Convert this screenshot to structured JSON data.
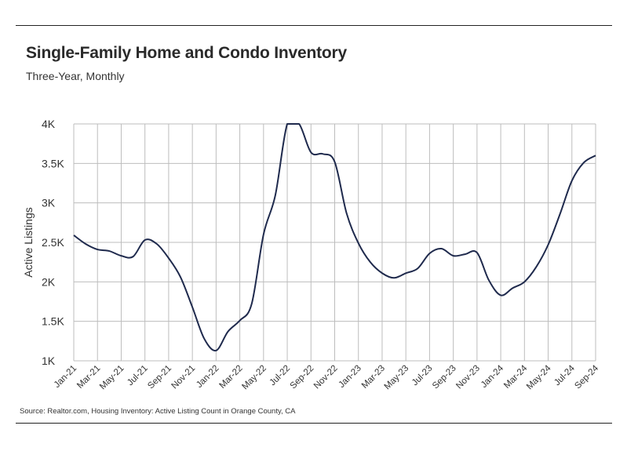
{
  "header": {
    "title": "Single-Family Home and Condo Inventory",
    "subtitle": "Three-Year, Monthly"
  },
  "footer": {
    "source": "Source: Realtor.com, Housing Inventory: Active Listing Count in Orange County, CA"
  },
  "colors": {
    "line": "#1f2a4d",
    "grid": "#bdbdbd",
    "rule": "#222222"
  },
  "chart_data": {
    "type": "line",
    "title": "Single-Family Home and Condo Inventory",
    "subtitle": "Three-Year, Monthly",
    "xlabel": "",
    "ylabel": "Active Listings",
    "ylim": [
      1000,
      4000
    ],
    "yticks": [
      1000,
      1500,
      2000,
      2500,
      3000,
      3500,
      4000
    ],
    "ytick_labels": [
      "1K",
      "1.5K",
      "2K",
      "2.5K",
      "3K",
      "3.5K",
      "4K"
    ],
    "grid": true,
    "legend": "none",
    "x": [
      "Jan-21",
      "Feb-21",
      "Mar-21",
      "Apr-21",
      "May-21",
      "Jun-21",
      "Jul-21",
      "Aug-21",
      "Sep-21",
      "Oct-21",
      "Nov-21",
      "Dec-21",
      "Jan-22",
      "Feb-22",
      "Mar-22",
      "Apr-22",
      "May-22",
      "Jun-22",
      "Jul-22",
      "Aug-22",
      "Sep-22",
      "Oct-22",
      "Nov-22",
      "Dec-22",
      "Jan-23",
      "Feb-23",
      "Mar-23",
      "Apr-23",
      "May-23",
      "Jun-23",
      "Jul-23",
      "Aug-23",
      "Sep-23",
      "Oct-23",
      "Nov-23",
      "Dec-23",
      "Jan-24",
      "Feb-24",
      "Mar-24",
      "Apr-24",
      "May-24",
      "Jun-24",
      "Jul-24",
      "Aug-24",
      "Sep-24"
    ],
    "x_tick_labels": [
      "Jan-21",
      "Mar-21",
      "May-21",
      "Jul-21",
      "Sep-21",
      "Nov-21",
      "Jan-22",
      "Mar-22",
      "May-22",
      "Jul-22",
      "Sep-22",
      "Nov-22",
      "Jan-23",
      "Mar-23",
      "May-23",
      "Jul-23",
      "Sep-23",
      "Nov-23",
      "Jan-24",
      "Mar-24",
      "May-24",
      "Jul-24",
      "Sep-24"
    ],
    "series": [
      {
        "values": [
          2590,
          2480,
          2410,
          2390,
          2330,
          2320,
          2530,
          2480,
          2300,
          2060,
          1680,
          1280,
          1130,
          1370,
          1510,
          1720,
          2600,
          3100,
          4000,
          4000,
          3640,
          3620,
          3520,
          2870,
          2490,
          2250,
          2110,
          2050,
          2110,
          2170,
          2360,
          2420,
          2330,
          2350,
          2370,
          2020,
          1830,
          1920,
          2000,
          2190,
          2470,
          2860,
          3280,
          3510,
          3600
        ]
      }
    ]
  }
}
